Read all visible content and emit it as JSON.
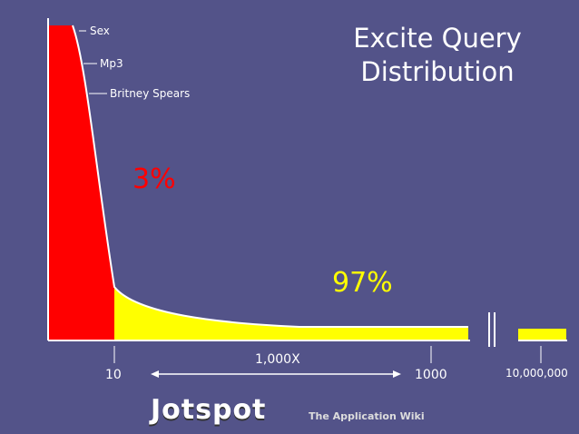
{
  "chart_data": {
    "type": "area",
    "title_line1": "Excite Query",
    "title_line2": "Distribution",
    "head_share_label": "3%",
    "tail_share_label": "97%",
    "annotations": [
      "Sex",
      "Mp3",
      "Britney Spears"
    ],
    "x_tick_labels": [
      "10",
      "1000",
      "10,000,000"
    ],
    "span_label": "1,000X",
    "regions": [
      {
        "name": "head",
        "color": "#ff0000",
        "share_percent": 3
      },
      {
        "name": "tail",
        "color": "#ffff00",
        "share_percent": 97
      }
    ]
  },
  "footer": {
    "logo_text": "Jotspot",
    "tagline": "The Application Wiki"
  }
}
